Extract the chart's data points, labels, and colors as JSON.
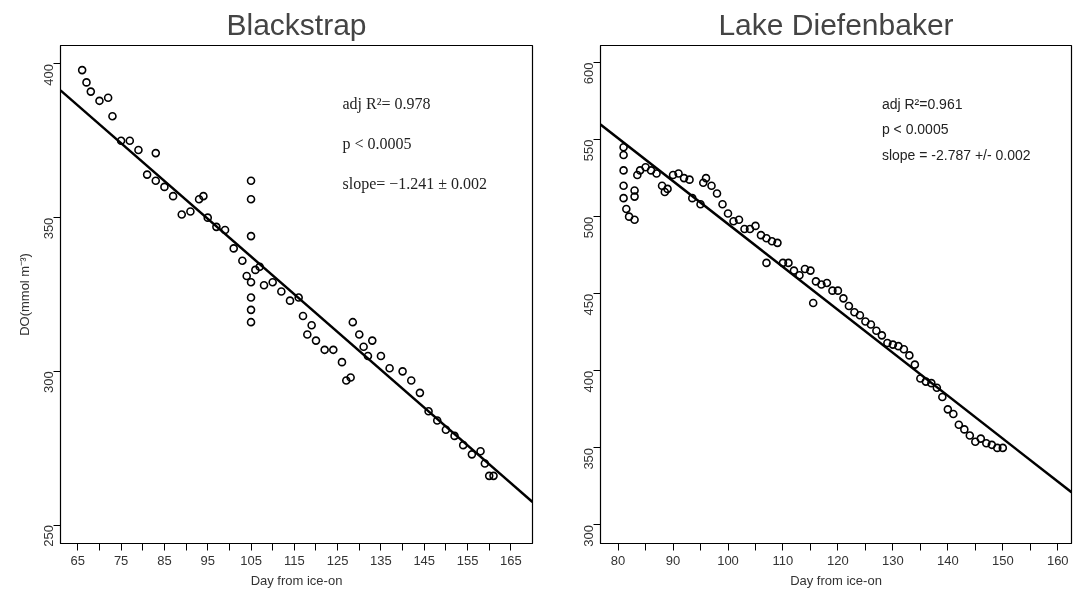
{
  "chart_data": [
    {
      "type": "scatter",
      "title": "Blackstrap",
      "xlabel": "Day from ice-on",
      "ylabel": "DO(mmol m⁻³)",
      "xlim": [
        61,
        170
      ],
      "ylim": [
        244,
        406
      ],
      "xticks": [
        65,
        {
          "value": 70,
          "label": null
        },
        75,
        {
          "value": 80,
          "label": null
        },
        85,
        {
          "value": 90,
          "label": null
        },
        95,
        {
          "value": 100,
          "label": null
        },
        105,
        {
          "value": 110,
          "label": null
        },
        115,
        {
          "value": 120,
          "label": null
        },
        125,
        {
          "value": 130,
          "label": null
        },
        135,
        {
          "value": 140,
          "label": null
        },
        145,
        {
          "value": 150,
          "label": null
        },
        155,
        {
          "value": 160,
          "label": null
        },
        165
      ],
      "yticks": [
        250,
        300,
        350,
        400
      ],
      "annotations": [
        "adj R²= 0.978",
        "p < 0.0005",
        "slope= −1.241 ± 0.002"
      ],
      "series": [
        {
          "marker": "circle",
          "color": "#000000",
          "x": [
            66,
            67,
            68,
            70,
            72,
            73,
            75,
            77,
            79,
            81,
            83,
            85,
            87,
            89,
            91,
            93,
            94,
            95,
            97,
            99,
            101,
            103,
            104,
            105,
            106,
            107,
            108,
            110,
            112,
            114,
            116,
            117,
            118,
            119,
            120,
            122,
            124,
            126,
            127,
            128,
            128.5,
            130,
            131,
            132,
            133,
            135,
            137,
            140,
            142,
            144,
            146,
            148,
            150,
            152,
            154,
            156,
            158,
            159,
            160,
            161,
            83,
            105,
            105,
            105,
            105,
            105,
            105
          ],
          "values": [
            398,
            394,
            391,
            388,
            389,
            383,
            375,
            375,
            372,
            364,
            362,
            360,
            357,
            351,
            352,
            356,
            357,
            350,
            347,
            346,
            340,
            336,
            331,
            329,
            333,
            334,
            328,
            329,
            326,
            323,
            324,
            318,
            312,
            315,
            310,
            307,
            307,
            303,
            297,
            298,
            316,
            312,
            308,
            305,
            310,
            305,
            301,
            300,
            297,
            293,
            287,
            284,
            281,
            279,
            276,
            273,
            274,
            270,
            266,
            266,
            371,
            362,
            356,
            344,
            324,
            320,
            316
          ]
        },
        {
          "type": "line",
          "color": "#000000",
          "x": [
            61,
            170
          ],
          "values": [
            391.4,
            257.5
          ]
        }
      ]
    },
    {
      "type": "scatter",
      "title": "Lake Diefenbaker",
      "xlabel": "Day from ice-on",
      "xlim": [
        76.8,
        162.5
      ],
      "ylim": [
        288,
        611
      ],
      "xticks": [
        80,
        {
          "value": 85,
          "label": null
        },
        90,
        {
          "value": 95,
          "label": null
        },
        100,
        {
          "value": 105,
          "label": null
        },
        110,
        {
          "value": 115,
          "label": null
        },
        120,
        {
          "value": 125,
          "label": null
        },
        130,
        {
          "value": 135,
          "label": null
        },
        140,
        {
          "value": 145,
          "label": null
        },
        150,
        {
          "value": 155,
          "label": null
        },
        160
      ],
      "yticks": [
        300,
        350,
        400,
        450,
        500,
        550,
        600
      ],
      "annotations": [
        "adj R²=0.961",
        "p < 0.0005",
        "slope = -2.787 +/- 0.002"
      ],
      "series": [
        {
          "marker": "circle",
          "color": "#000000",
          "x": [
            81,
            81,
            81,
            81,
            81,
            81.5,
            82,
            83,
            83,
            83,
            83.5,
            84,
            85,
            86,
            87,
            88,
            88.5,
            89,
            90,
            91,
            92,
            93,
            93.5,
            95,
            95.5,
            96,
            97,
            98,
            99,
            100,
            101,
            102,
            103,
            104,
            105,
            106,
            107,
            107,
            108,
            109,
            110,
            111,
            112,
            113,
            114,
            115,
            115.5,
            116,
            117,
            118,
            119,
            120,
            121,
            122,
            123,
            124,
            125,
            126,
            127,
            128,
            129,
            130,
            131,
            132,
            133,
            134,
            135,
            136,
            137,
            138,
            139,
            140,
            141,
            142,
            143,
            144,
            145,
            146,
            147,
            148,
            149,
            150
          ],
          "values": [
            545,
            540,
            530,
            520,
            512,
            505,
            500,
            498,
            517,
            513,
            527,
            530,
            532,
            530,
            528,
            520,
            516,
            518,
            527,
            528,
            525,
            524,
            512,
            508,
            522,
            525,
            520,
            515,
            508,
            502,
            497,
            498,
            492,
            492,
            494,
            488,
            486,
            470,
            484,
            483,
            470,
            470,
            465,
            462,
            466,
            465,
            444,
            458,
            456,
            457,
            452,
            452,
            447,
            442,
            438,
            436,
            432,
            430,
            426,
            423,
            418,
            417,
            416,
            414,
            410,
            404,
            395,
            393,
            392,
            389,
            383,
            375,
            372,
            365,
            362,
            358,
            354,
            356,
            353,
            352,
            350,
            350
          ]
        },
        {
          "type": "line",
          "color": "#000000",
          "x": [
            76.8,
            162.5
          ],
          "values": [
            559.8,
            321.2
          ]
        }
      ]
    }
  ]
}
